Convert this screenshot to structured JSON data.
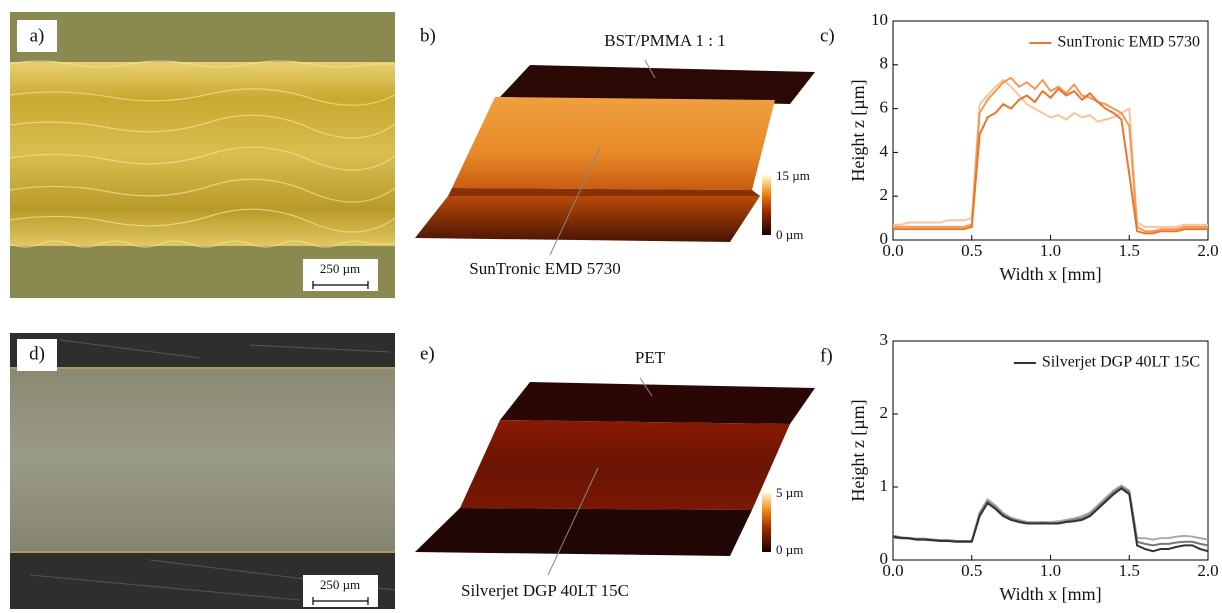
{
  "panels": {
    "a": {
      "label": "a)",
      "scale_bar": "250 µm"
    },
    "b": {
      "label": "b)",
      "top_label": "BST/PMMA 1 : 1",
      "bottom_label": "SunTronic EMD 5730",
      "colorbar_max": "15 µm",
      "colorbar_min": "0 µm"
    },
    "d": {
      "label": "d)",
      "scale_bar": "250 µm"
    },
    "e": {
      "label": "e)",
      "top_label": "PET",
      "bottom_label": "Silverjet DGP 40LT 15C",
      "colorbar_max": "5 µm",
      "colorbar_min": "0 µm"
    }
  },
  "chart_data": [
    {
      "type": "line",
      "panel_label": "c)",
      "xlabel": "Width x [mm]",
      "ylabel": "Height z [µm]",
      "xlim": [
        0,
        2
      ],
      "xticks": [
        {
          "value": 0,
          "label": "0.0"
        },
        0.5,
        {
          "value": 1,
          "label": "1.0"
        },
        1.5,
        {
          "value": 2,
          "label": "2.0"
        }
      ],
      "ylim": [
        0,
        10
      ],
      "yticks": [
        0,
        2,
        4,
        6,
        8,
        10
      ],
      "legend": "top-right",
      "x": [
        0,
        0.05,
        0.1,
        0.15,
        0.2,
        0.25,
        0.3,
        0.35,
        0.4,
        0.45,
        0.5,
        0.55,
        0.6,
        0.65,
        0.7,
        0.75,
        0.8,
        0.85,
        0.9,
        0.95,
        1,
        1.05,
        1.1,
        1.15,
        1.2,
        1.25,
        1.3,
        1.35,
        1.4,
        1.45,
        1.5,
        1.55,
        1.6,
        1.65,
        1.7,
        1.75,
        1.8,
        1.85,
        1.9,
        1.95,
        2
      ],
      "series": [
        {
          "name": "SunTronic EMD 5730",
          "color": "#e8762c",
          "values": [
            0.5,
            0.5,
            0.5,
            0.5,
            0.5,
            0.5,
            0.5,
            0.5,
            0.5,
            0.5,
            0.6,
            4.8,
            5.6,
            5.8,
            6.2,
            6.0,
            6.4,
            6.6,
            6.3,
            6.8,
            6.5,
            6.9,
            6.6,
            6.8,
            6.4,
            6.7,
            6.3,
            6.0,
            5.8,
            5.5,
            3.0,
            0.4,
            0.3,
            0.3,
            0.4,
            0.4,
            0.4,
            0.5,
            0.5,
            0.5,
            0.5
          ]
        },
        {
          "color": "#f09a58",
          "values": [
            0.6,
            0.6,
            0.6,
            0.6,
            0.6,
            0.6,
            0.6,
            0.6,
            0.6,
            0.6,
            0.7,
            5.8,
            6.4,
            6.8,
            7.2,
            7.4,
            7.0,
            7.2,
            6.9,
            7.3,
            6.8,
            7.0,
            6.7,
            7.1,
            6.6,
            6.5,
            6.3,
            6.2,
            6.0,
            5.8,
            5.2,
            0.6,
            0.4,
            0.4,
            0.5,
            0.5,
            0.5,
            0.6,
            0.6,
            0.6,
            0.6
          ]
        },
        {
          "color": "#f8c4a0",
          "values": [
            0.7,
            0.7,
            0.8,
            0.8,
            0.8,
            0.8,
            0.8,
            0.9,
            0.9,
            0.9,
            1.0,
            6.2,
            6.6,
            7.0,
            7.3,
            7.0,
            6.6,
            6.2,
            6.0,
            5.8,
            5.6,
            5.7,
            5.5,
            5.8,
            5.6,
            5.7,
            5.4,
            5.5,
            5.6,
            5.8,
            6.0,
            0.8,
            0.6,
            0.6,
            0.6,
            0.6,
            0.6,
            0.7,
            0.7,
            0.7,
            0.7
          ]
        }
      ]
    },
    {
      "type": "line",
      "panel_label": "f)",
      "xlabel": "Width x [mm]",
      "ylabel": "Height z [µm]",
      "xlim": [
        0,
        2
      ],
      "xticks": [
        {
          "value": 0,
          "label": "0.0"
        },
        0.5,
        {
          "value": 1,
          "label": "1.0"
        },
        1.5,
        {
          "value": 2,
          "label": "2.0"
        }
      ],
      "ylim": [
        0,
        3
      ],
      "yticks": [
        0,
        1,
        2,
        3
      ],
      "legend": "top-right",
      "x": [
        0,
        0.05,
        0.1,
        0.15,
        0.2,
        0.25,
        0.3,
        0.35,
        0.4,
        0.45,
        0.5,
        0.55,
        0.6,
        0.65,
        0.7,
        0.75,
        0.8,
        0.85,
        0.9,
        0.95,
        1,
        1.05,
        1.1,
        1.15,
        1.2,
        1.25,
        1.3,
        1.35,
        1.4,
        1.45,
        1.5,
        1.55,
        1.6,
        1.65,
        1.7,
        1.75,
        1.8,
        1.85,
        1.9,
        1.95,
        2
      ],
      "series": [
        {
          "name": "Silverjet DGP 40LT 15C",
          "color": "#333333",
          "values": [
            0.32,
            0.3,
            0.3,
            0.28,
            0.28,
            0.27,
            0.26,
            0.26,
            0.25,
            0.25,
            0.25,
            0.6,
            0.78,
            0.7,
            0.6,
            0.55,
            0.52,
            0.5,
            0.5,
            0.5,
            0.5,
            0.5,
            0.52,
            0.53,
            0.55,
            0.6,
            0.7,
            0.8,
            0.9,
            0.98,
            0.9,
            0.2,
            0.15,
            0.12,
            0.15,
            0.15,
            0.18,
            0.2,
            0.2,
            0.15,
            0.12
          ]
        },
        {
          "color": "#777777",
          "values": [
            0.33,
            0.31,
            0.3,
            0.29,
            0.29,
            0.28,
            0.27,
            0.27,
            0.26,
            0.26,
            0.26,
            0.62,
            0.8,
            0.72,
            0.62,
            0.56,
            0.53,
            0.51,
            0.5,
            0.51,
            0.5,
            0.51,
            0.53,
            0.55,
            0.57,
            0.62,
            0.72,
            0.82,
            0.92,
            1.0,
            0.93,
            0.25,
            0.22,
            0.2,
            0.22,
            0.22,
            0.24,
            0.25,
            0.25,
            0.22,
            0.2
          ]
        },
        {
          "color": "#aaaaaa",
          "values": [
            0.3,
            0.3,
            0.29,
            0.28,
            0.28,
            0.27,
            0.27,
            0.26,
            0.26,
            0.26,
            0.26,
            0.65,
            0.83,
            0.75,
            0.64,
            0.58,
            0.55,
            0.52,
            0.52,
            0.52,
            0.52,
            0.53,
            0.55,
            0.57,
            0.6,
            0.65,
            0.75,
            0.85,
            0.95,
            1.02,
            0.95,
            0.3,
            0.3,
            0.28,
            0.3,
            0.3,
            0.32,
            0.33,
            0.32,
            0.3,
            0.28
          ]
        }
      ]
    }
  ]
}
